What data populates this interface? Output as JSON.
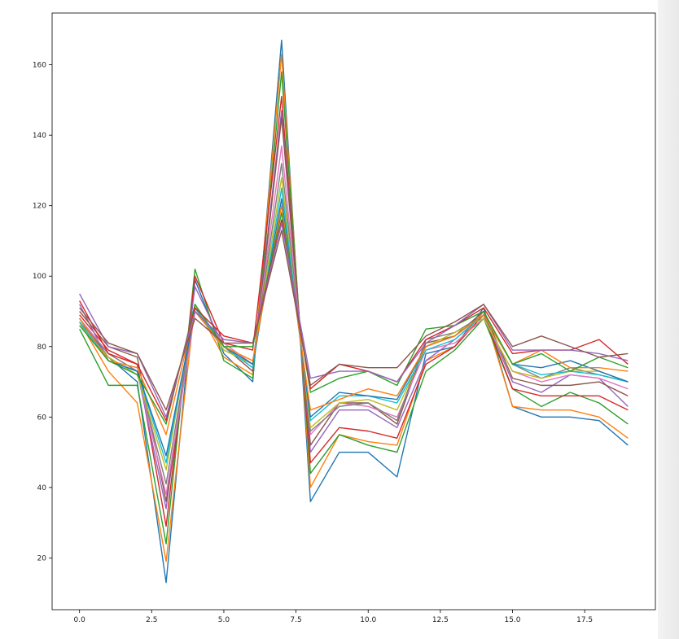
{
  "chart_data": {
    "type": "line",
    "title": "",
    "xlabel": "",
    "ylabel": "",
    "xlim": [
      -0.95,
      19.95
    ],
    "ylim": [
      5.3,
      174.7
    ],
    "x": [
      0,
      1,
      2,
      3,
      4,
      5,
      6,
      7,
      8,
      9,
      10,
      11,
      12,
      13,
      14,
      15,
      16,
      17,
      18,
      19
    ],
    "x_ticks": [
      0.0,
      2.5,
      5.0,
      7.5,
      10.0,
      12.5,
      15.0,
      17.5
    ],
    "x_tick_labels": [
      "0.0",
      "2.5",
      "5.0",
      "7.5",
      "10.0",
      "12.5",
      "15.0",
      "17.5"
    ],
    "y_ticks": [
      20,
      40,
      60,
      80,
      100,
      120,
      140,
      160
    ],
    "y_tick_labels": [
      "20",
      "40",
      "60",
      "80",
      "100",
      "120",
      "140",
      "160"
    ],
    "grid": false,
    "legend": "none",
    "series": [
      {
        "color": "#1f77b4",
        "values": [
          88,
          77,
          70,
          13,
          99,
          78,
          70,
          167,
          36,
          50,
          50,
          43,
          78,
          80,
          91,
          63,
          60,
          60,
          59,
          52
        ]
      },
      {
        "color": "#ff7f0e",
        "values": [
          87,
          73,
          64,
          19,
          92,
          77,
          72,
          163,
          40,
          55,
          53,
          52,
          76,
          80,
          90,
          63,
          62,
          62,
          60,
          54
        ]
      },
      {
        "color": "#2ca02c",
        "values": [
          85,
          69,
          69,
          24,
          102,
          76,
          71,
          158,
          44,
          55,
          52,
          50,
          73,
          79,
          88,
          68,
          63,
          67,
          64,
          58
        ]
      },
      {
        "color": "#d62728",
        "values": [
          89,
          79,
          75,
          29,
          100,
          81,
          79,
          151,
          47,
          57,
          56,
          54,
          75,
          80,
          89,
          68,
          66,
          66,
          66,
          62
        ]
      },
      {
        "color": "#9467bd",
        "values": [
          92,
          76,
          73,
          34,
          97,
          80,
          74,
          147,
          50,
          62,
          62,
          57,
          76,
          82,
          89,
          70,
          67,
          72,
          71,
          63
        ]
      },
      {
        "color": "#8c564b",
        "values": [
          90,
          80,
          77,
          36,
          91,
          80,
          73,
          145,
          52,
          64,
          64,
          58,
          81,
          83,
          90,
          71,
          69,
          69,
          70,
          66
        ]
      },
      {
        "color": "#e377c2",
        "values": [
          88,
          78,
          73,
          38,
          90,
          81,
          75,
          137,
          55,
          64,
          63,
          60,
          79,
          81,
          88,
          73,
          70,
          72,
          71,
          68
        ]
      },
      {
        "color": "#7f7f7f",
        "values": [
          87,
          78,
          73,
          41,
          91,
          79,
          75,
          132,
          56,
          63,
          64,
          59,
          82,
          84,
          89,
          75,
          71,
          74,
          72,
          70
        ]
      },
      {
        "color": "#bcbd22",
        "values": [
          86,
          77,
          72,
          45,
          92,
          79,
          75,
          128,
          57,
          64,
          65,
          62,
          80,
          84,
          88,
          73,
          71,
          73,
          73,
          70
        ]
      },
      {
        "color": "#17becf",
        "values": [
          87,
          76,
          73,
          47,
          91,
          80,
          74,
          125,
          59,
          66,
          66,
          64,
          79,
          82,
          89,
          75,
          72,
          73,
          72,
          70
        ]
      },
      {
        "color": "#1f77b4",
        "values": [
          88,
          76,
          73,
          49,
          90,
          80,
          75,
          122,
          60,
          67,
          66,
          65,
          80,
          83,
          89,
          75,
          74,
          76,
          73,
          70
        ]
      },
      {
        "color": "#ff7f0e",
        "values": [
          88,
          76,
          74,
          55,
          90,
          80,
          76,
          120,
          62,
          65,
          68,
          66,
          80,
          83,
          89,
          75,
          79,
          74,
          74,
          73
        ]
      },
      {
        "color": "#2ca02c",
        "values": [
          86,
          76,
          72,
          58,
          92,
          80,
          80,
          118,
          67,
          71,
          73,
          69,
          85,
          86,
          90,
          75,
          78,
          73,
          77,
          74
        ]
      },
      {
        "color": "#d62728",
        "values": [
          93,
          78,
          75,
          59,
          91,
          83,
          81,
          116,
          68,
          75,
          73,
          70,
          82,
          86,
          91,
          78,
          79,
          79,
          82,
          75
        ]
      },
      {
        "color": "#9467bd",
        "values": [
          95,
          80,
          78,
          60,
          90,
          82,
          81,
          115,
          71,
          73,
          73,
          70,
          81,
          86,
          92,
          79,
          79,
          79,
          78,
          76
        ]
      },
      {
        "color": "#8c564b",
        "values": [
          91,
          81,
          78,
          62,
          88,
          81,
          81,
          113,
          69,
          75,
          74,
          74,
          83,
          87,
          92,
          80,
          83,
          80,
          77,
          78
        ]
      }
    ]
  }
}
